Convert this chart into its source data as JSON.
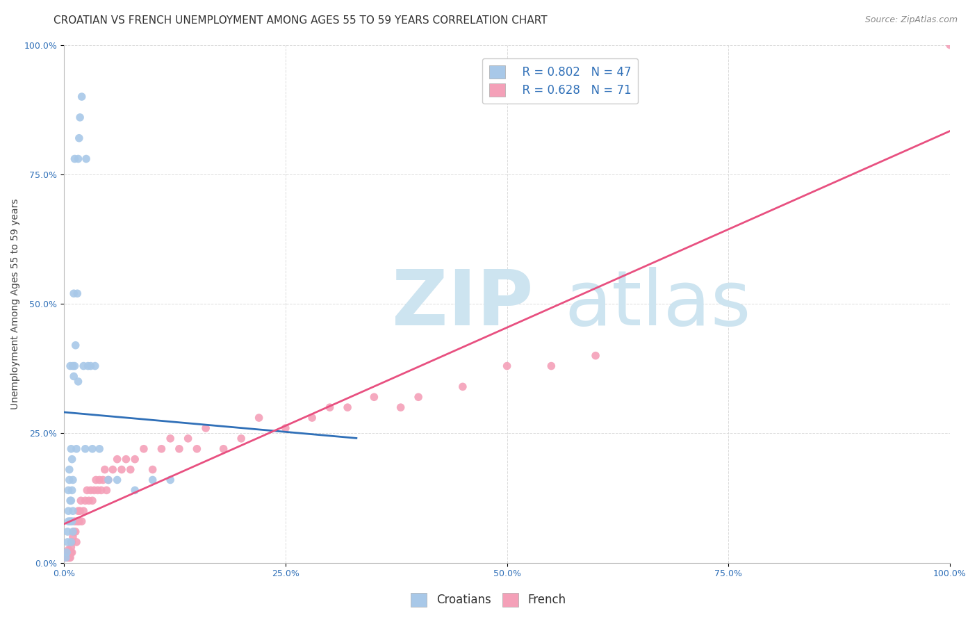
{
  "title": "CROATIAN VS FRENCH UNEMPLOYMENT AMONG AGES 55 TO 59 YEARS CORRELATION CHART",
  "source": "Source: ZipAtlas.com",
  "ylabel": "Unemployment Among Ages 55 to 59 years",
  "xlim": [
    0,
    1.0
  ],
  "ylim": [
    0,
    1.0
  ],
  "xticks": [
    0.0,
    0.25,
    0.5,
    0.75,
    1.0
  ],
  "yticks": [
    0.0,
    0.25,
    0.5,
    0.75,
    1.0
  ],
  "xticklabels": [
    "0.0%",
    "25.0%",
    "50.0%",
    "75.0%",
    "100.0%"
  ],
  "yticklabels": [
    "0.0%",
    "25.0%",
    "50.0%",
    "75.0%",
    "100.0%"
  ],
  "croatians_color": "#a8c8e8",
  "french_color": "#f4a0b8",
  "trendline_croatians_color": "#3070b8",
  "trendline_french_color": "#e85080",
  "legend_R_croatians": "R = 0.802",
  "legend_N_croatians": "N = 47",
  "legend_R_french": "R = 0.628",
  "legend_N_french": "N = 71",
  "watermark_zip": "ZIP",
  "watermark_atlas": "atlas",
  "watermark_color": "#cde4f0",
  "background_color": "#ffffff",
  "grid_color": "#d8d8d8",
  "title_fontsize": 11,
  "source_fontsize": 9,
  "axis_label_fontsize": 10,
  "tick_fontsize": 9,
  "legend_fontsize": 12,
  "croatians_x": [
    0.002,
    0.003,
    0.004,
    0.004,
    0.005,
    0.005,
    0.005,
    0.006,
    0.006,
    0.007,
    0.007,
    0.007,
    0.008,
    0.008,
    0.008,
    0.009,
    0.009,
    0.009,
    0.01,
    0.01,
    0.01,
    0.01,
    0.011,
    0.011,
    0.012,
    0.012,
    0.013,
    0.014,
    0.015,
    0.016,
    0.016,
    0.017,
    0.018,
    0.02,
    0.022,
    0.024,
    0.025,
    0.027,
    0.03,
    0.032,
    0.035,
    0.04,
    0.05,
    0.06,
    0.08,
    0.1,
    0.12
  ],
  "croatians_y": [
    0.01,
    0.02,
    0.04,
    0.06,
    0.08,
    0.1,
    0.14,
    0.16,
    0.18,
    0.08,
    0.12,
    0.38,
    0.04,
    0.12,
    0.22,
    0.08,
    0.14,
    0.2,
    0.06,
    0.1,
    0.16,
    0.38,
    0.36,
    0.52,
    0.38,
    0.78,
    0.42,
    0.22,
    0.52,
    0.35,
    0.78,
    0.82,
    0.86,
    0.9,
    0.38,
    0.22,
    0.78,
    0.38,
    0.38,
    0.22,
    0.38,
    0.22,
    0.16,
    0.16,
    0.14,
    0.16,
    0.16
  ],
  "french_x": [
    0.001,
    0.002,
    0.003,
    0.003,
    0.004,
    0.004,
    0.005,
    0.005,
    0.006,
    0.006,
    0.007,
    0.007,
    0.008,
    0.008,
    0.009,
    0.009,
    0.01,
    0.011,
    0.012,
    0.013,
    0.014,
    0.015,
    0.016,
    0.017,
    0.018,
    0.019,
    0.02,
    0.022,
    0.024,
    0.026,
    0.028,
    0.03,
    0.032,
    0.034,
    0.036,
    0.038,
    0.04,
    0.042,
    0.044,
    0.046,
    0.048,
    0.05,
    0.055,
    0.06,
    0.065,
    0.07,
    0.075,
    0.08,
    0.09,
    0.1,
    0.11,
    0.12,
    0.13,
    0.14,
    0.15,
    0.16,
    0.18,
    0.2,
    0.22,
    0.25,
    0.28,
    0.3,
    0.32,
    0.35,
    0.38,
    0.4,
    0.45,
    0.5,
    0.55,
    0.6,
    1.0
  ],
  "french_y": [
    0.01,
    0.01,
    0.02,
    0.01,
    0.02,
    0.01,
    0.015,
    0.025,
    0.02,
    0.01,
    0.02,
    0.01,
    0.02,
    0.03,
    0.04,
    0.02,
    0.05,
    0.06,
    0.08,
    0.06,
    0.04,
    0.08,
    0.1,
    0.08,
    0.1,
    0.12,
    0.08,
    0.1,
    0.12,
    0.14,
    0.12,
    0.14,
    0.12,
    0.14,
    0.16,
    0.14,
    0.16,
    0.14,
    0.16,
    0.18,
    0.14,
    0.16,
    0.18,
    0.2,
    0.18,
    0.2,
    0.18,
    0.2,
    0.22,
    0.18,
    0.22,
    0.24,
    0.22,
    0.24,
    0.22,
    0.26,
    0.22,
    0.24,
    0.28,
    0.26,
    0.28,
    0.3,
    0.3,
    0.32,
    0.3,
    0.32,
    0.34,
    0.38,
    0.38,
    0.4,
    1.0
  ]
}
